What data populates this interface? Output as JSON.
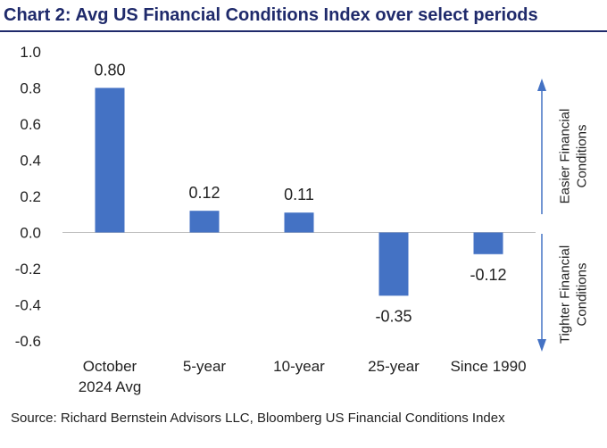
{
  "title": "Chart 2: Avg US Financial Conditions Index over select periods",
  "source": "Source: Richard Bernstein Advisors LLC, Bloomberg US Financial Conditions Index",
  "colors": {
    "bar": "#4472c4",
    "title": "#1f2a6b",
    "arrow": "#4472c4"
  },
  "chart_data": {
    "type": "bar",
    "title": "Chart 2: Avg US Financial Conditions Index over select periods",
    "categories": [
      [
        "October",
        "2024 Avg"
      ],
      [
        "5-year"
      ],
      [
        "10-year"
      ],
      [
        "25-year"
      ],
      [
        "Since 1990"
      ]
    ],
    "values": [
      0.8,
      0.12,
      0.11,
      -0.35,
      -0.12
    ],
    "value_labels": [
      "0.80",
      "0.12",
      "0.11",
      "-0.35",
      "-0.12"
    ],
    "ylim": [
      -0.6,
      1.0
    ],
    "yticks": [
      "1.0",
      "0.8",
      "0.6",
      "0.4",
      "0.2",
      "0.0",
      "-0.2",
      "-0.4",
      "-0.6"
    ],
    "ytick_values": [
      1.0,
      0.8,
      0.6,
      0.4,
      0.2,
      0.0,
      -0.2,
      -0.4,
      -0.6
    ],
    "grid": false,
    "annotations": {
      "up": [
        "Easier Financial",
        "Conditions"
      ],
      "down": [
        "Tighter Financial",
        "Conditions"
      ]
    }
  }
}
